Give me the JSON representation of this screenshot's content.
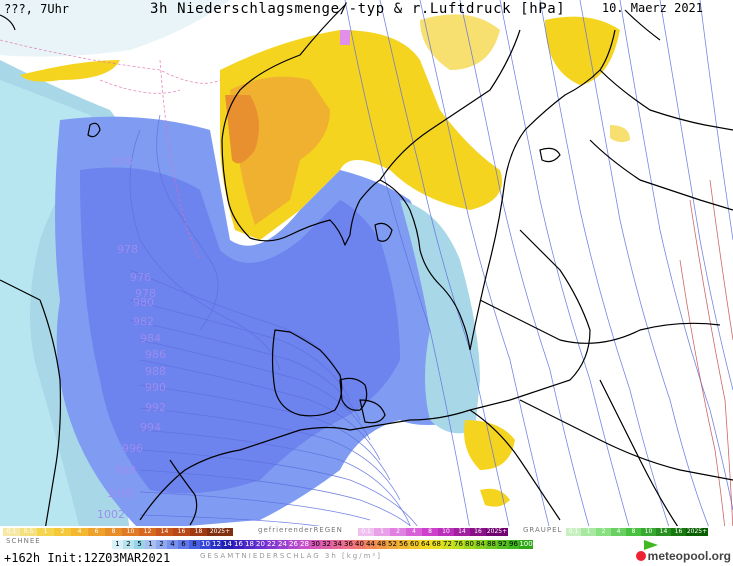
{
  "header": {
    "left": "???, 7Uhr",
    "title": "3h Niederschlagsmenge/-typ & r.Luftdruck [hPa]",
    "date": "10. Maerz 2021"
  },
  "pressure_labels": [
    "978",
    "978",
    "976",
    "978",
    "980",
    "982",
    "984",
    "986",
    "988",
    "990",
    "992",
    "994",
    "996",
    "998",
    "1000",
    "1002"
  ],
  "legend": {
    "snow_label": "SCHNEE",
    "freezing_rain_label": "gefrierenderREGEN",
    "graupel_label": "GRAUPEL",
    "snow_scale": [
      "0.1",
      "0.5",
      "1",
      "2",
      "4",
      "6",
      "8",
      "10",
      "12",
      "14",
      "16",
      "18",
      "2025+"
    ],
    "freezing_scale": [
      "0.1",
      "1",
      "2",
      "4",
      "8",
      "10",
      "14",
      "16",
      "2025+"
    ],
    "graupel_scale": [
      "0.1",
      "1",
      "2",
      "4",
      "8",
      "10",
      "14",
      "16",
      "2025+"
    ],
    "total_scale": [
      "1",
      "2",
      "5",
      "1",
      "2",
      "4",
      "6",
      "8",
      "10",
      "12",
      "14",
      "16",
      "18",
      "20",
      "22",
      "24",
      "26",
      "28",
      "30",
      "32",
      "34",
      "36",
      "40",
      "44",
      "48",
      "52",
      "56",
      "60",
      "64",
      "68",
      "72",
      "76",
      "80",
      "84",
      "88",
      "92",
      "96",
      "100"
    ],
    "total_label": "GESAMTNIEDERSCHLAG 3h [kg/m²]"
  },
  "footer": {
    "run": "+162h Init:12Z03MAR2021",
    "logo": "meteopool.org"
  },
  "colors": {
    "snow_yellow": "#f5d020",
    "snow_orange": "#f0a030",
    "rain_blue": "#6a8ef0",
    "rain_light": "#a8d0f0",
    "isobar": "#6070e0",
    "coast": "#000000"
  }
}
